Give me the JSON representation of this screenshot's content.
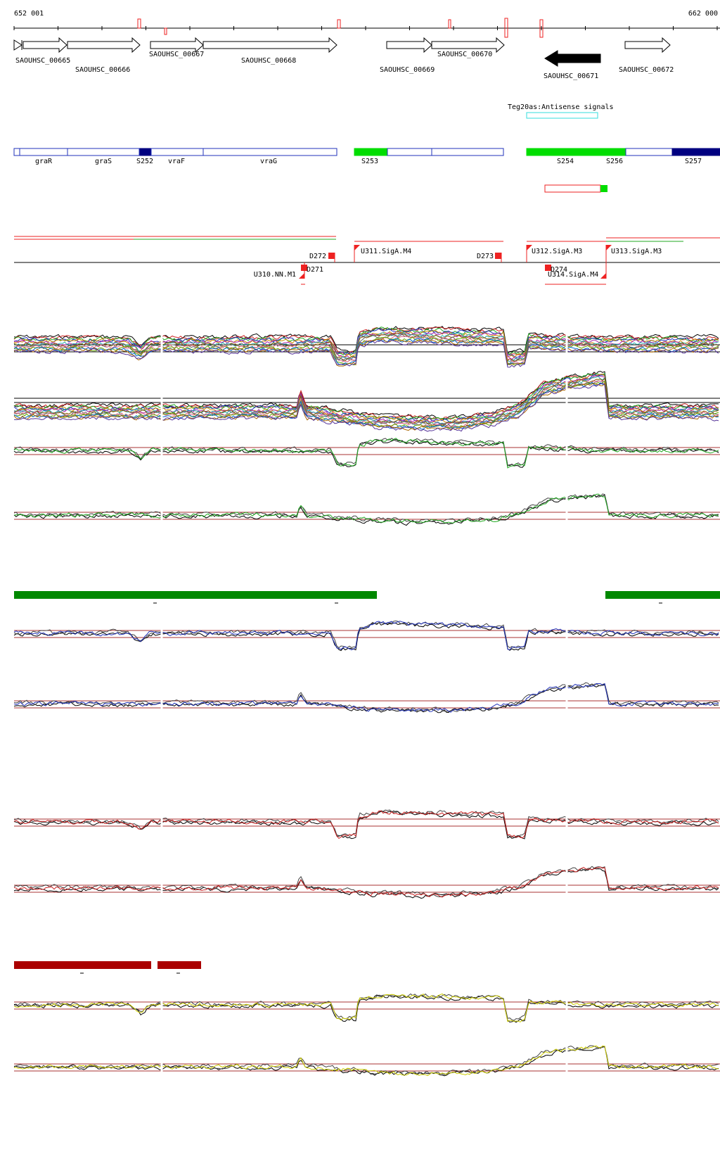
{
  "coords": {
    "start": "652 001",
    "end": "662 000"
  },
  "genes": [
    {
      "id": "SAOUHSC_00665",
      "strand": "+",
      "fill": "white"
    },
    {
      "id": "SAOUHSC_00666",
      "strand": "+",
      "fill": "white"
    },
    {
      "id": "SAOUHSC_00667",
      "strand": "+",
      "fill": "white"
    },
    {
      "id": "SAOUHSC_00668",
      "strand": "+",
      "fill": "white"
    },
    {
      "id": "SAOUHSC_00669",
      "strand": "+",
      "fill": "white"
    },
    {
      "id": "SAOUHSC_00670",
      "strand": "+",
      "fill": "white"
    },
    {
      "id": "SAOUHSC_00671",
      "strand": "-",
      "fill": "black"
    },
    {
      "id": "SAOUHSC_00672",
      "strand": "+",
      "fill": "white"
    }
  ],
  "antisense": {
    "label": "Teg20as:Antisense signals"
  },
  "segments": [
    {
      "label": "graR",
      "color": "#2233bb",
      "filled": false
    },
    {
      "label": "graS",
      "color": "#2233bb",
      "filled": false
    },
    {
      "label": "S252",
      "color": "#000080",
      "filled": true
    },
    {
      "label": "vraF",
      "color": "#2233bb",
      "filled": false
    },
    {
      "label": "vraG",
      "color": "#2233bb",
      "filled": false
    },
    {
      "label": "S253",
      "color": "#00dd00",
      "filled": true
    },
    {
      "label": "S254",
      "color": "#00dd00",
      "filled": true
    },
    {
      "label": "S256",
      "color": "#2233bb",
      "filled": false
    },
    {
      "label": "S257",
      "color": "#000080",
      "filled": true
    }
  ],
  "upshifts": [
    {
      "label": "U311.SigA.M4"
    },
    {
      "label": "U312.SigA.M3"
    },
    {
      "label": "U313.SigA.M3"
    },
    {
      "label": "U310.NN.M1"
    },
    {
      "label": "U314.SigA.M4"
    }
  ],
  "downshifts": [
    {
      "label": "D272"
    },
    {
      "label": "D273"
    },
    {
      "label": "D271"
    },
    {
      "label": "D274"
    }
  ],
  "colors": {
    "gene_outline": "#000000",
    "segment_blue": "#2233bb",
    "segment_navy": "#000080",
    "segment_green": "#00dd00",
    "signal_red": "#ee2222",
    "signal_green": "#22aa22",
    "threshold": "#aa3333",
    "green_bar": "#008800",
    "red_bar": "#aa0000",
    "antisense_box": "#33dddd",
    "blue_trace": "#2233bb",
    "red_trace": "#cc2222",
    "yellow_trace": "#cccc00"
  },
  "tracks": [
    {
      "name": "all-conditions-strand-1",
      "kind": "multi"
    },
    {
      "name": "all-conditions-strand-2",
      "kind": "multi"
    },
    {
      "name": "green-strand-1",
      "kind": "pair",
      "color": "green"
    },
    {
      "name": "green-strand-2",
      "kind": "pair",
      "color": "green"
    },
    {
      "name": "blue-strand-1",
      "kind": "pair",
      "color": "blue"
    },
    {
      "name": "blue-strand-2",
      "kind": "pair",
      "color": "blue"
    },
    {
      "name": "red-strand-1",
      "kind": "pair",
      "color": "red"
    },
    {
      "name": "red-strand-2",
      "kind": "pair",
      "color": "red"
    },
    {
      "name": "yellow-strand-1",
      "kind": "pair",
      "color": "yellow"
    },
    {
      "name": "yellow-strand-2",
      "kind": "pair",
      "color": "yellow"
    }
  ]
}
